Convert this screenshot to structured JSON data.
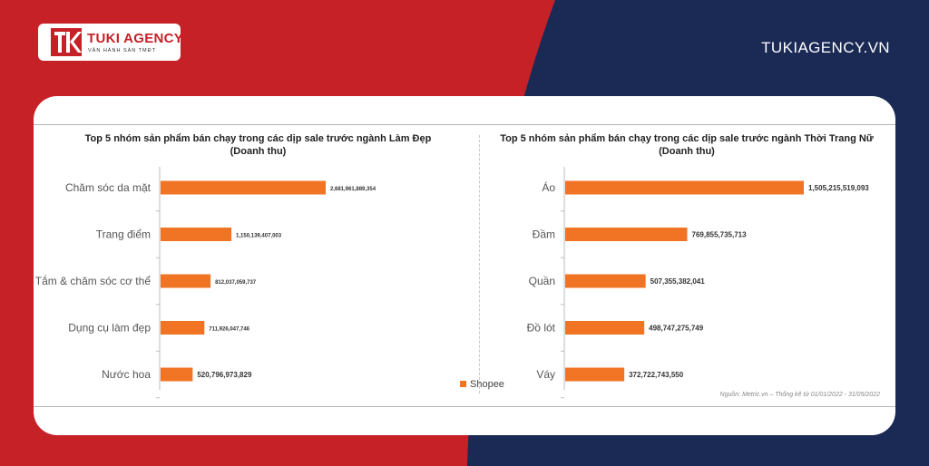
{
  "brand": {
    "name": "TUKI AGENCY",
    "tagline": "VẬN HÀNH SÀN TMĐT",
    "website": "TUKIAGENCY.VN"
  },
  "colors": {
    "red": "#c62127",
    "navy": "#1b2a55",
    "bar": "#f07424"
  },
  "legend": {
    "label": "Shopee"
  },
  "source": "Nguồn: Metric.vn – Thống kê từ 01/01/2022 - 31/05/2022",
  "chart_data": [
    {
      "type": "bar",
      "orientation": "horizontal",
      "title_line1": "Top 5 nhóm sản phẩm bán chạy trong các dịp sale trước ngành Làm Đẹp",
      "title_line2": "(Doanh thu)",
      "categories": [
        "Chăm sóc da mặt",
        "Trang điểm",
        "Tắm & chăm sóc cơ thể",
        "Dụng cụ làm đẹp",
        "Nước hoa"
      ],
      "series": [
        {
          "name": "Shopee",
          "values": [
            2681961889354,
            1150139407003,
            812037059737,
            711926047746,
            520796973829
          ]
        }
      ],
      "labels": [
        "2,681,961,889,354",
        "1,150,139,407,003",
        "812,037,059,737",
        "711,926,047,746",
        "520,796,973,829"
      ],
      "legend": "bottom"
    },
    {
      "type": "bar",
      "orientation": "horizontal",
      "title_line1": "Top 5 nhóm sản phẩm bán chạy trong các dịp sale trước ngành Thời Trang Nữ",
      "title_line2": "(Doanh thu)",
      "categories": [
        "Áo",
        "Đầm",
        "Quần",
        "Đồ lót",
        "Váy"
      ],
      "series": [
        {
          "name": "Shopee",
          "values": [
            1505215519093,
            769855735713,
            507355382041,
            498747275749,
            372722743550
          ]
        }
      ],
      "labels": [
        "1,505,215,519,093",
        "769,855,735,713",
        "507,355,382,041",
        "498,747,275,749",
        "372,722,743,550"
      ],
      "legend": "bottom"
    }
  ]
}
